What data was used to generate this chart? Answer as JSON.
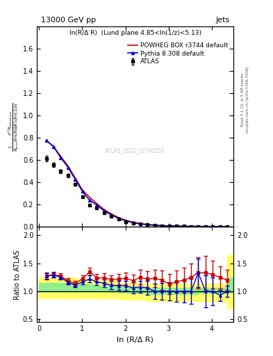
{
  "title_left": "13000 GeV pp",
  "title_right": "Jets",
  "subtitle": "ln(R/Δ R)  (Lund plane 4.85<ln(1/z)<5.13)",
  "ylabel_main": "$\\frac{1}{N_{jets}}\\frac{d^2 N_{emissions}}{d\\ln(R/\\Delta R)\\, d\\ln(1/z)}$",
  "ylabel_ratio": "Ratio to ATLAS",
  "xlabel": "ln (R/Δ R)",
  "right_label1": "Rivet 3.1.10, ≥ 3.3M events",
  "right_label2": "mcplots.cern.ch [arXiv:1306.3436]",
  "watermark": "ATLAS_2020_I1790256",
  "atlas_x": [
    0.168,
    0.335,
    0.503,
    0.67,
    0.838,
    1.005,
    1.173,
    1.34,
    1.508,
    1.676,
    1.843,
    2.011,
    2.178,
    2.346,
    2.513,
    2.681,
    2.849,
    3.016,
    3.184,
    3.351,
    3.519,
    3.686,
    3.854,
    4.022,
    4.189,
    4.357
  ],
  "atlas_y": [
    0.614,
    0.558,
    0.499,
    0.462,
    0.385,
    0.271,
    0.196,
    0.168,
    0.126,
    0.096,
    0.068,
    0.048,
    0.036,
    0.024,
    0.018,
    0.013,
    0.01,
    0.008,
    0.006,
    0.005,
    0.004,
    0.003,
    0.003,
    0.002,
    0.002,
    0.002
  ],
  "atlas_yerr": [
    0.025,
    0.02,
    0.016,
    0.014,
    0.012,
    0.009,
    0.007,
    0.006,
    0.005,
    0.004,
    0.003,
    0.002,
    0.002,
    0.001,
    0.001,
    0.001,
    0.0008,
    0.0006,
    0.0005,
    0.0004,
    0.0003,
    0.0003,
    0.0003,
    0.0002,
    0.0002,
    0.0002
  ],
  "powheg_x": [
    0.168,
    0.335,
    0.503,
    0.67,
    0.838,
    1.005,
    1.173,
    1.34,
    1.508,
    1.676,
    1.843,
    2.011,
    2.178,
    2.346,
    2.513,
    2.681,
    2.849,
    3.016,
    3.184,
    3.351,
    3.519,
    3.686,
    3.854,
    4.022,
    4.189,
    4.357
  ],
  "powheg_y": [
    0.778,
    0.723,
    0.634,
    0.548,
    0.44,
    0.332,
    0.265,
    0.209,
    0.156,
    0.116,
    0.083,
    0.059,
    0.043,
    0.03,
    0.022,
    0.016,
    0.012,
    0.009,
    0.007,
    0.006,
    0.005,
    0.004,
    0.004,
    0.003,
    0.003,
    0.003
  ],
  "pythia_x": [
    0.168,
    0.335,
    0.503,
    0.67,
    0.838,
    1.005,
    1.173,
    1.34,
    1.508,
    1.676,
    1.843,
    2.011,
    2.178,
    2.346,
    2.513,
    2.681,
    2.849,
    3.016,
    3.184,
    3.351,
    3.519,
    3.686,
    3.854,
    4.022,
    4.189,
    4.357
  ],
  "pythia_y": [
    0.778,
    0.722,
    0.622,
    0.536,
    0.428,
    0.318,
    0.24,
    0.196,
    0.143,
    0.107,
    0.075,
    0.053,
    0.038,
    0.026,
    0.019,
    0.013,
    0.01,
    0.008,
    0.006,
    0.005,
    0.004,
    0.004,
    0.003,
    0.003,
    0.002,
    0.002
  ],
  "ratio_powheg_y": [
    1.27,
    1.3,
    1.27,
    1.19,
    1.14,
    1.22,
    1.35,
    1.24,
    1.24,
    1.21,
    1.22,
    1.23,
    1.19,
    1.25,
    1.22,
    1.23,
    1.2,
    1.13,
    1.17,
    1.2,
    1.25,
    1.33,
    1.33,
    1.3,
    1.25,
    1.2
  ],
  "ratio_powheg_yerr": [
    0.06,
    0.05,
    0.05,
    0.05,
    0.05,
    0.06,
    0.07,
    0.07,
    0.08,
    0.08,
    0.09,
    0.1,
    0.11,
    0.13,
    0.14,
    0.16,
    0.17,
    0.18,
    0.2,
    0.22,
    0.25,
    0.28,
    0.3,
    0.25,
    0.2,
    0.18
  ],
  "ratio_pythia_y": [
    1.27,
    1.29,
    1.25,
    1.16,
    1.11,
    1.17,
    1.22,
    1.17,
    1.14,
    1.11,
    1.1,
    1.1,
    1.06,
    1.08,
    1.06,
    1.0,
    1.0,
    1.0,
    1.0,
    1.0,
    1.0,
    1.33,
    1.0,
    1.0,
    0.93,
    1.0
  ],
  "ratio_pythia_yerr": [
    0.05,
    0.04,
    0.04,
    0.04,
    0.04,
    0.05,
    0.06,
    0.06,
    0.07,
    0.07,
    0.08,
    0.09,
    0.1,
    0.11,
    0.12,
    0.14,
    0.15,
    0.16,
    0.18,
    0.2,
    0.22,
    0.25,
    0.28,
    0.25,
    0.1,
    0.1
  ],
  "band_x": [
    0.0,
    0.168,
    0.503,
    0.838,
    1.34,
    1.843,
    2.513,
    3.184,
    3.686,
    4.022,
    4.357,
    4.5
  ],
  "band_green_low": [
    1.0,
    1.0,
    1.0,
    1.0,
    1.0,
    0.97,
    0.95,
    0.95,
    0.97,
    0.97,
    0.97,
    0.97
  ],
  "band_green_high": [
    1.15,
    1.15,
    1.15,
    1.13,
    1.1,
    1.07,
    1.06,
    1.06,
    1.06,
    1.06,
    1.25,
    1.25
  ],
  "band_yellow_low": [
    0.88,
    0.88,
    0.88,
    0.88,
    0.88,
    0.85,
    0.83,
    0.83,
    0.83,
    0.83,
    0.7,
    0.7
  ],
  "band_yellow_high": [
    1.25,
    1.25,
    1.25,
    1.22,
    1.18,
    1.15,
    1.14,
    1.14,
    1.14,
    1.14,
    1.65,
    1.65
  ],
  "main_ylim": [
    0.0,
    1.8
  ],
  "main_yticks": [
    0.0,
    0.2,
    0.4,
    0.6,
    0.8,
    1.0,
    1.2,
    1.4,
    1.6
  ],
  "ratio_ylim": [
    0.45,
    2.15
  ],
  "ratio_yticks": [
    0.5,
    1.0,
    1.5,
    2.0
  ],
  "xlim": [
    -0.05,
    4.5
  ],
  "xticks": [
    0,
    1,
    2,
    3,
    4
  ],
  "color_powheg": "#cc0000",
  "color_pythia": "#0000cc",
  "color_atlas": "#000000",
  "color_green": "#90ee90",
  "color_yellow": "#ffff66"
}
